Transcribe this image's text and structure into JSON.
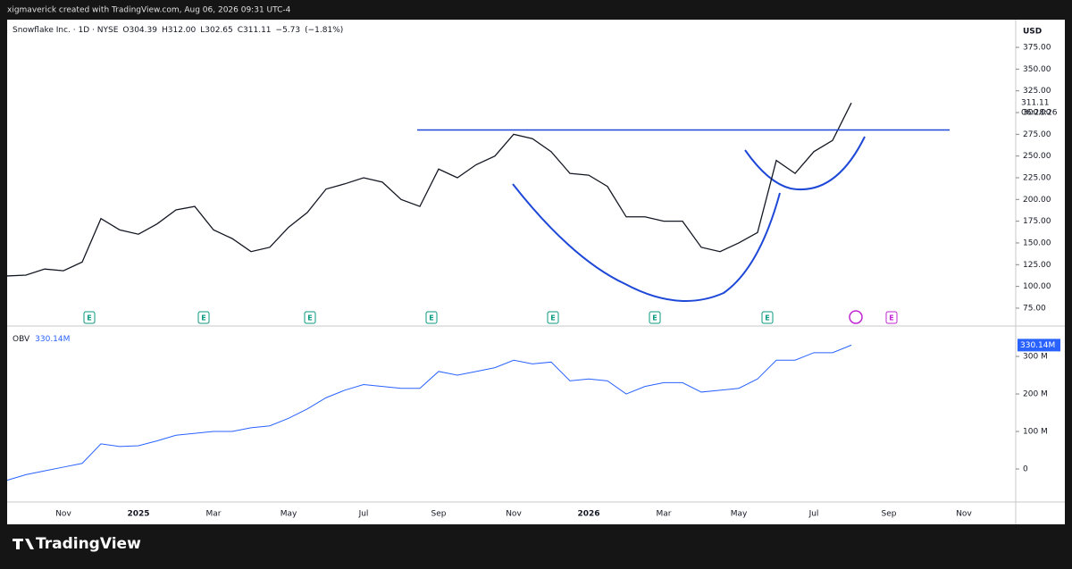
{
  "top_bar": {
    "text": "xigmaverick created with TradingView.com, Aug 06, 2026 09:31 UTC-4"
  },
  "footer": {
    "brand": "TradingView"
  },
  "chart_data": [
    {
      "type": "line",
      "name": "price",
      "legend": {
        "symbol": "Snowflake Inc. · 1D · NYSE",
        "open": {
          "value": 304.39,
          "label": "O304.39"
        },
        "high": {
          "value": 312.0,
          "label": "H312.00"
        },
        "low": {
          "value": 302.65,
          "label": "L302.65"
        },
        "close": {
          "value": 311.11,
          "label": "C311.11"
        },
        "change": {
          "value": -5.73,
          "label": "−5.73"
        },
        "change_pct": {
          "value": -1.81,
          "label": "(−1.81%)"
        }
      },
      "axis_unit": "USD",
      "countdown": "06:28:26",
      "categories": [
        null,
        null,
        null,
        "Nov",
        null,
        null,
        null,
        "2025",
        null,
        null,
        null,
        "Mar",
        null,
        null,
        null,
        "May",
        null,
        null,
        null,
        "Jul",
        null,
        null,
        null,
        "Sep",
        null,
        null,
        null,
        "Nov",
        null,
        null,
        null,
        "2026",
        null,
        null,
        null,
        "Mar",
        null,
        null,
        null,
        "May",
        null,
        null,
        null,
        "Jul",
        null,
        null,
        null,
        "Sep",
        null,
        null,
        null,
        "Nov",
        null
      ],
      "series": [
        {
          "name": null,
          "color": "#131722",
          "values": [
            112,
            113,
            120,
            118,
            128,
            178,
            165,
            160,
            172,
            188,
            192,
            165,
            155,
            140,
            145,
            168,
            185,
            212,
            218,
            225,
            220,
            200,
            192,
            235,
            225,
            240,
            250,
            275,
            270,
            255,
            230,
            228,
            215,
            180,
            180,
            175,
            175,
            145,
            140,
            150,
            162,
            245,
            230,
            255,
            268,
            311.11,
            null,
            null,
            null,
            null,
            null,
            null,
            null
          ],
          "value_labels": [
            null,
            null,
            null,
            null,
            null,
            null,
            null,
            null,
            null,
            null,
            null,
            null,
            null,
            null,
            null,
            null,
            null,
            null,
            null,
            null,
            null,
            null,
            null,
            null,
            null,
            null,
            null,
            null,
            null,
            null,
            null,
            null,
            null,
            null,
            null,
            null,
            null,
            null,
            null,
            null,
            null,
            null,
            null,
            null,
            null,
            "311.11",
            null,
            null,
            null,
            null,
            null,
            null,
            null
          ]
        }
      ],
      "resistance": 280,
      "earnings": [
        "E",
        "E",
        "E",
        "E",
        "E",
        "E",
        "E",
        "E"
      ],
      "ylim": [
        54.4,
        406.9
      ],
      "yticks": [
        {
          "value": 75,
          "label": "75.00"
        },
        {
          "value": 100,
          "label": "100.00"
        },
        {
          "value": 125,
          "label": "125.00"
        },
        {
          "value": 150,
          "label": "150.00"
        },
        {
          "value": 175,
          "label": "175.00"
        },
        {
          "value": 200,
          "label": "200.00"
        },
        {
          "value": 225,
          "label": "225.00"
        },
        {
          "value": 250,
          "label": "250.00"
        },
        {
          "value": 275,
          "label": "275.00"
        },
        {
          "value": 300,
          "label": "300.00"
        },
        {
          "value": 325,
          "label": "325.00"
        },
        {
          "value": 350,
          "label": "350.00"
        },
        {
          "value": 375,
          "label": "375.00"
        }
      ]
    },
    {
      "type": "line",
      "name": "OBV",
      "series": [
        {
          "name": "OBV",
          "color": "#2962ff",
          "values": [
            -30,
            -15,
            -5,
            5,
            15,
            67,
            60,
            62,
            75,
            90,
            95,
            100,
            100,
            110,
            115,
            135,
            160,
            190,
            210,
            225,
            220,
            215,
            215,
            260,
            250,
            260,
            270,
            290,
            280,
            285,
            235,
            240,
            235,
            200,
            220,
            230,
            230,
            205,
            210,
            215,
            240,
            290,
            290,
            310,
            310,
            330.14,
            null,
            null,
            null,
            null,
            null,
            null,
            null
          ],
          "last_label": "330.14M"
        }
      ],
      "ylim": [
        -88,
        381
      ],
      "yticks": [
        0,
        {
          "value": 100,
          "label": "100 M"
        },
        {
          "value": 200,
          "label": "200 M"
        },
        {
          "value": 300,
          "label": "300 M"
        }
      ]
    }
  ]
}
